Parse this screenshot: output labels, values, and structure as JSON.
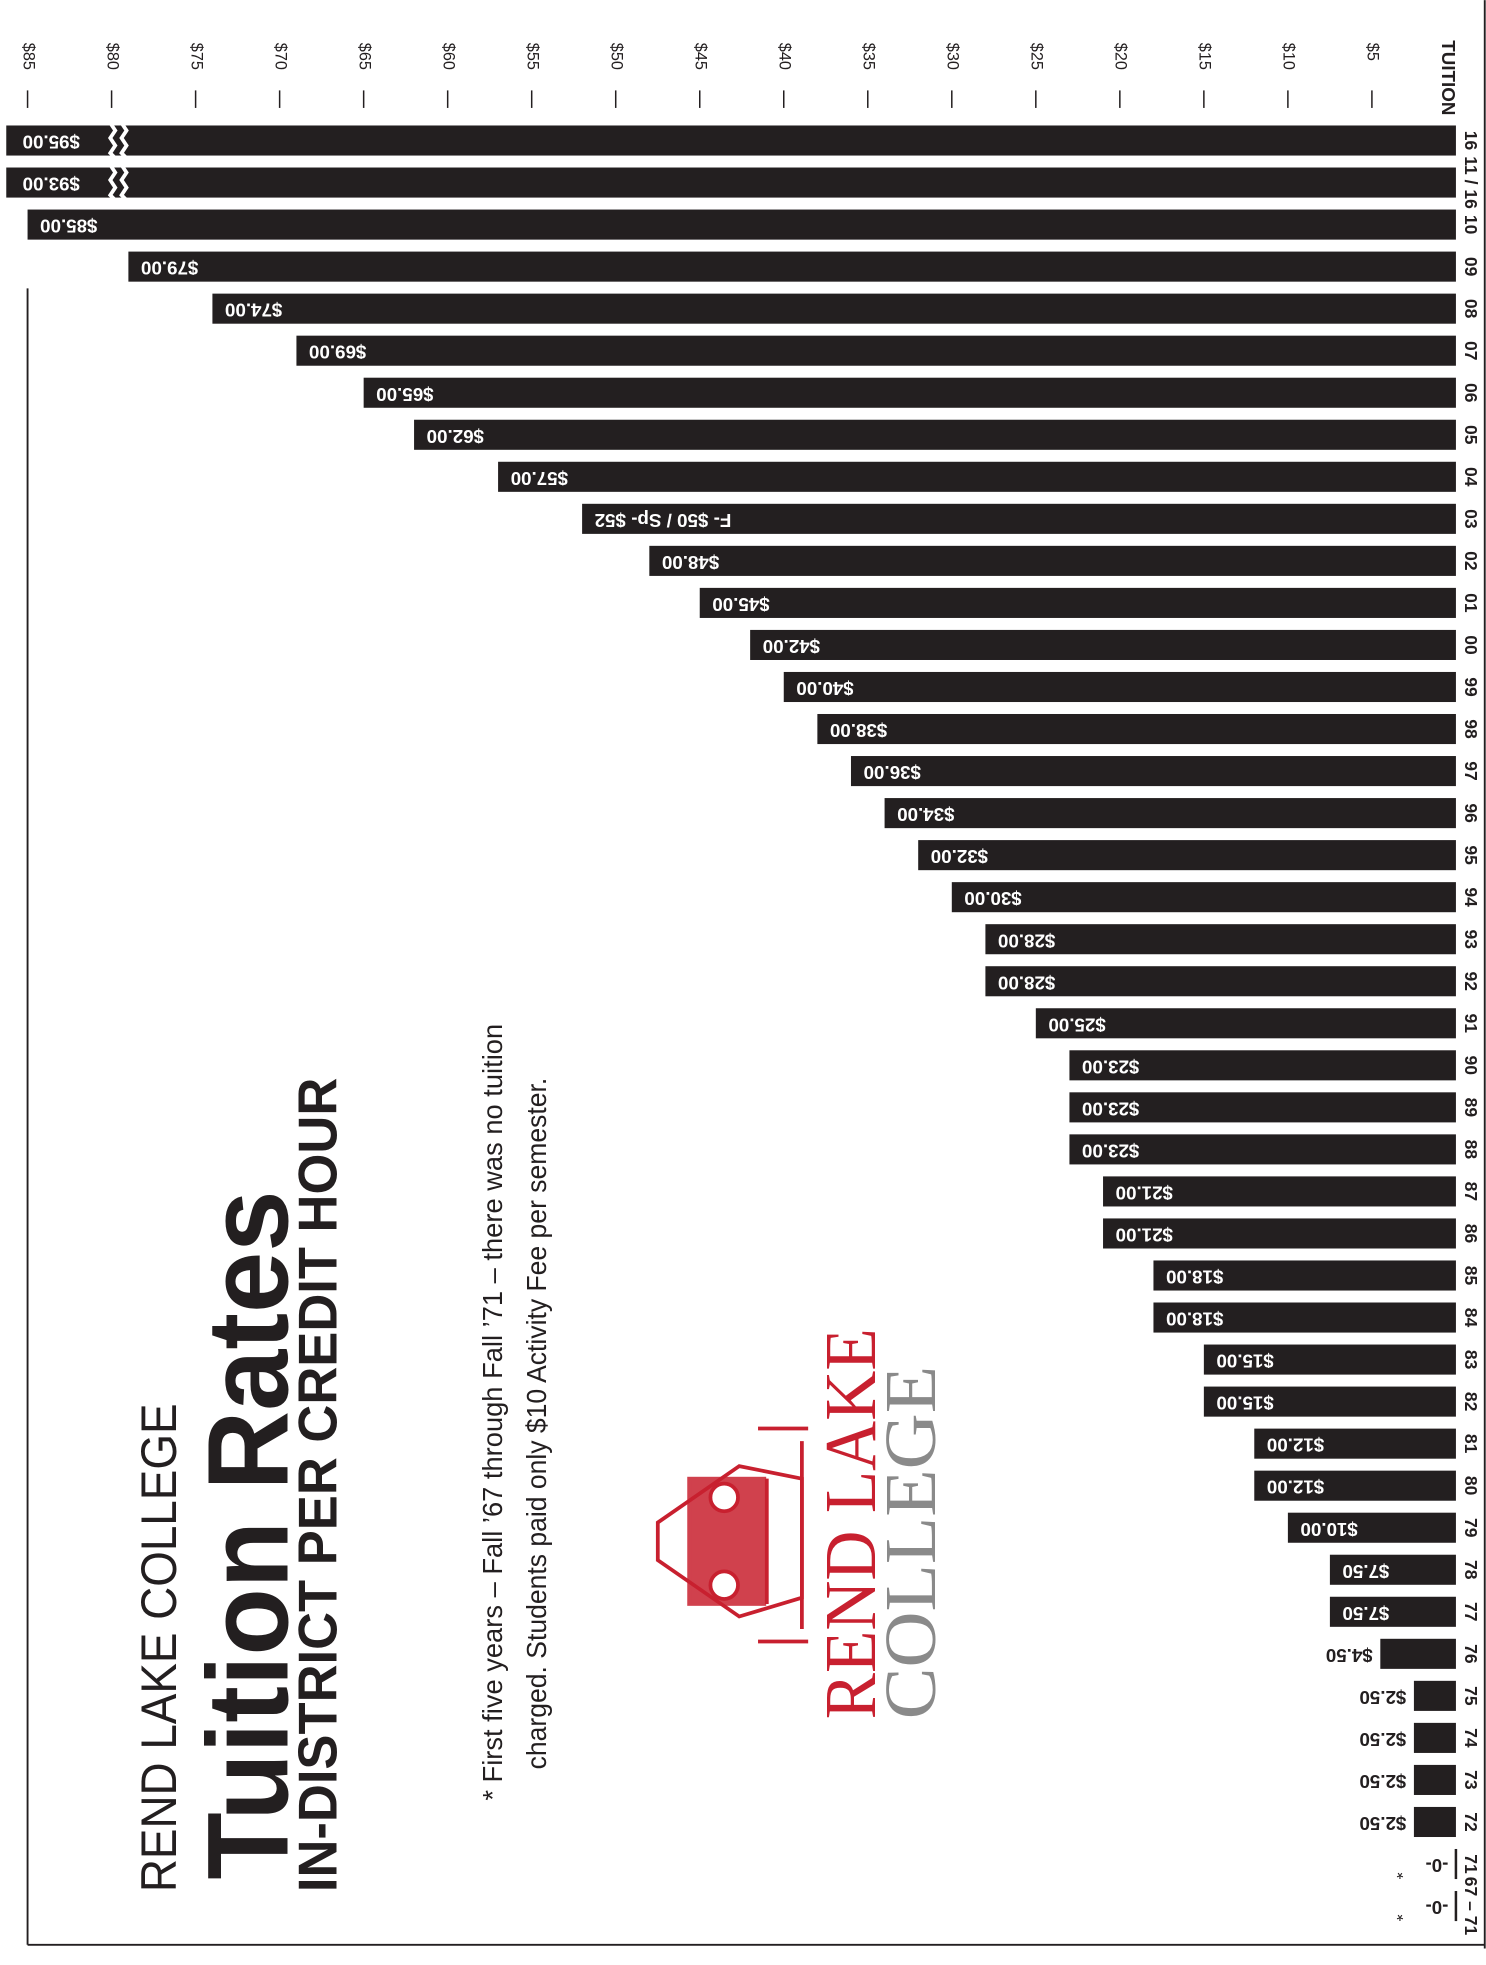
{
  "title_block": {
    "college": "REND LAKE COLLEGE",
    "title": "Tuition Rates",
    "subtitle": "IN-DISTRICT PER CREDIT HOUR"
  },
  "note": [
    "* First five years  –  Fall ’67 through Fall ’71  –  there was no tuition",
    "charged.  Students paid only $10 Activity Fee per semester."
  ],
  "logo": {
    "line1": "REND LAKE",
    "line2": "COLLEGE"
  },
  "chart_data": {
    "type": "bar",
    "orientation": "horizontal",
    "x_label": "TUITION",
    "color": "#231f20",
    "categories": [
      "16",
      "11 / 16",
      "10",
      "09",
      "08",
      "07",
      "06",
      "05",
      "04",
      "03",
      "02",
      "01",
      "00",
      "99",
      "98",
      "97",
      "96",
      "95",
      "94",
      "93",
      "92",
      "91",
      "90",
      "89",
      "88",
      "87",
      "86",
      "85",
      "84",
      "83",
      "82",
      "81",
      "80",
      "79",
      "78",
      "77",
      "76",
      "75",
      "74",
      "73",
      "72",
      "71",
      "67 – 71"
    ],
    "values": [
      95,
      93,
      85,
      79,
      74,
      69,
      65,
      62,
      57,
      52,
      48,
      45,
      42,
      40,
      38,
      36,
      34,
      32,
      30,
      28,
      28,
      25,
      23,
      23,
      23,
      21,
      21,
      18,
      18,
      15,
      15,
      12,
      12,
      10,
      7.5,
      7.5,
      4.5,
      2.5,
      2.5,
      2.5,
      2.5,
      0,
      0
    ],
    "value_labels": [
      "$95.00",
      "$93.00",
      "$85.00",
      "$79.00",
      "$74.00",
      "$69.00",
      "$65.00",
      "$62.00",
      "$57.00",
      "F- $50 / Sp- $52",
      "$48.00",
      "$45.00",
      "$42.00",
      "$40.00",
      "$38.00",
      "$36.00",
      "$34.00",
      "$32.00",
      "$30.00",
      "$28.00",
      "$28.00",
      "$25.00",
      "$23.00",
      "$23.00",
      "$23.00",
      "$21.00",
      "$21.00",
      "$18.00",
      "$18.00",
      "$15.00",
      "$15.00",
      "$12.00",
      "$12.00",
      "$10.00",
      "$7.50",
      "$7.50",
      "$4.50",
      "$2.50",
      "$2.50",
      "$2.50",
      "$2.50",
      "-0-",
      "-0-"
    ],
    "annotations": [
      {
        "category": "71",
        "text": "*"
      },
      {
        "category": "67 – 71",
        "text": "*"
      }
    ],
    "xlim": [
      0,
      85
    ],
    "xticks": [
      {
        "value": 85,
        "label": "$85"
      },
      {
        "value": 80,
        "label": "$80"
      },
      {
        "value": 75,
        "label": "$75"
      },
      {
        "value": 70,
        "label": "$70"
      },
      {
        "value": 65,
        "label": "$65"
      },
      {
        "value": 60,
        "label": "$60"
      },
      {
        "value": 55,
        "label": "$55"
      },
      {
        "value": 50,
        "label": "$50"
      },
      {
        "value": 45,
        "label": "$45"
      },
      {
        "value": 40,
        "label": "$40"
      },
      {
        "value": 35,
        "label": "$35"
      },
      {
        "value": 30,
        "label": "$30"
      },
      {
        "value": 25,
        "label": "$25"
      },
      {
        "value": 20,
        "label": "$20"
      },
      {
        "value": 15,
        "label": "$15"
      },
      {
        "value": 10,
        "label": "$10"
      },
      {
        "value": 5,
        "label": "$5"
      }
    ]
  }
}
